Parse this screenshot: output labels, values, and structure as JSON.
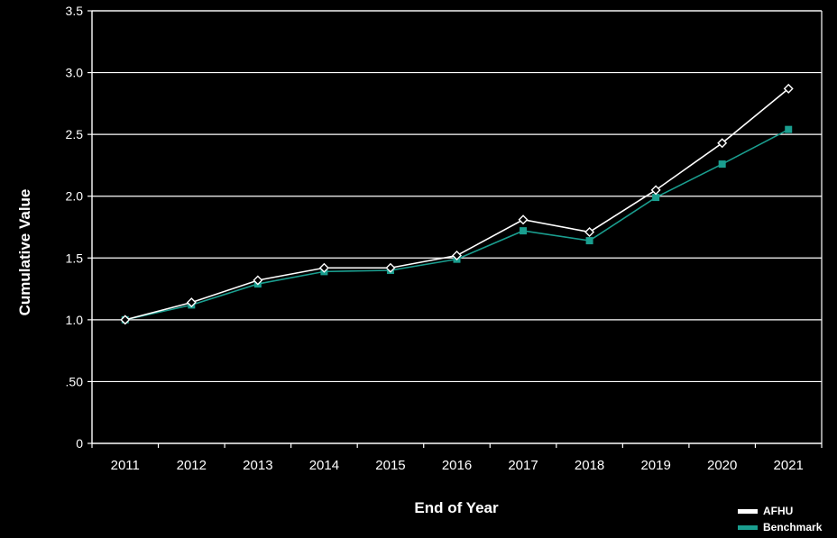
{
  "chart_data": {
    "type": "line",
    "title": "",
    "xlabel": "End of Year",
    "ylabel": "Cumulative Value",
    "ylim": [
      0,
      3.5
    ],
    "yticks": [
      {
        "value": 0,
        "label": "0"
      },
      {
        "value": 0.5,
        "label": ".50"
      },
      {
        "value": 1.0,
        "label": "1.0"
      },
      {
        "value": 1.5,
        "label": "1.5"
      },
      {
        "value": 2.0,
        "label": "2.0"
      },
      {
        "value": 2.5,
        "label": "2.5"
      },
      {
        "value": 3.0,
        "label": "3.0"
      },
      {
        "value": 3.5,
        "label": "3.5"
      }
    ],
    "categories": [
      "2011",
      "2012",
      "2013",
      "2014",
      "2015",
      "2016",
      "2017",
      "2018",
      "2019",
      "2020",
      "2021"
    ],
    "grid": true,
    "legend_position": "bottom-right",
    "series": [
      {
        "name": "AFHU",
        "color": "#ffffff",
        "marker": "diamond-open",
        "values": [
          1.0,
          1.14,
          1.32,
          1.42,
          1.42,
          1.52,
          1.81,
          1.71,
          2.05,
          2.43,
          2.87
        ]
      },
      {
        "name": "Benchmark",
        "color": "#1a9e8f",
        "marker": "square",
        "values": [
          1.0,
          1.12,
          1.29,
          1.39,
          1.4,
          1.49,
          1.72,
          1.64,
          1.99,
          2.26,
          2.54
        ]
      }
    ]
  },
  "colors": {
    "background": "#000000",
    "axis": "#ffffff",
    "grid": "#ffffff"
  }
}
